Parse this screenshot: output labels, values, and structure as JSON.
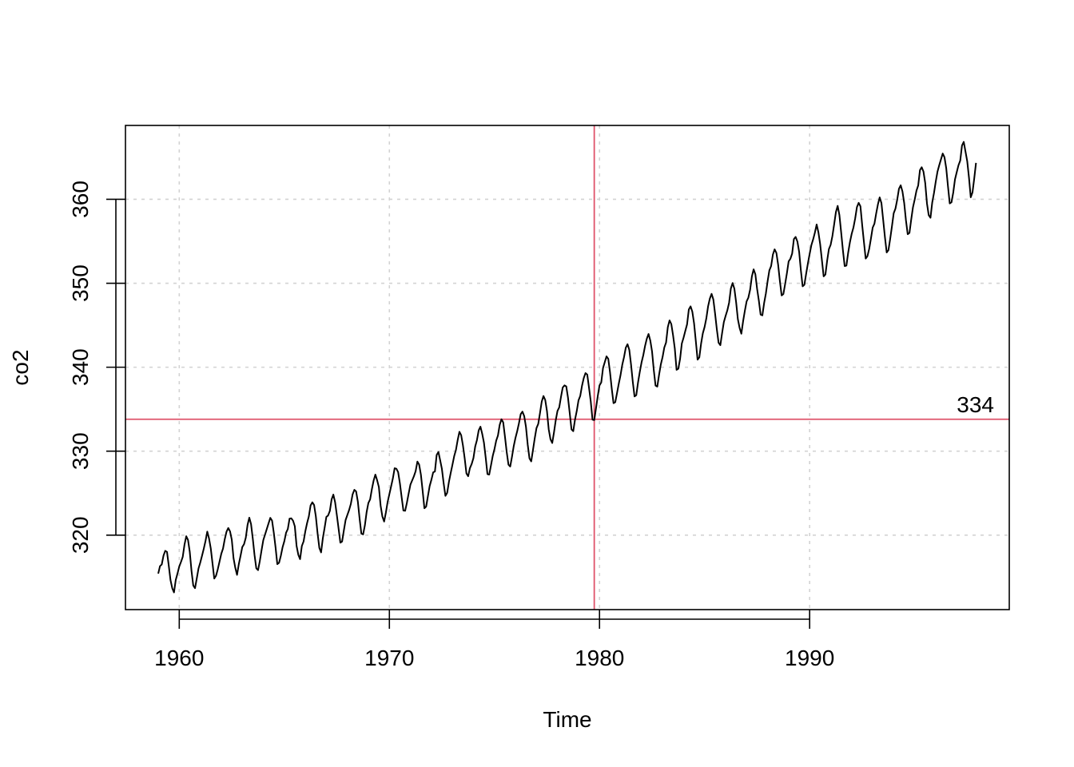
{
  "chart_data": {
    "type": "line",
    "title": "",
    "xlabel": "Time",
    "ylabel": "co2",
    "xlim": [
      1957.44,
      1999.5
    ],
    "ylim": [
      311.13,
      368.8
    ],
    "x_ticks": [
      1960,
      1970,
      1980,
      1990
    ],
    "y_ticks": [
      320,
      330,
      340,
      350,
      360
    ],
    "grid": true,
    "frequency": 12,
    "start": 1959.0,
    "series": [
      {
        "values": [
          315.42,
          316.31,
          316.5,
          317.56,
          318.13,
          318.0,
          316.39,
          314.65,
          313.68,
          313.18,
          314.66,
          315.43,
          316.27,
          316.81,
          317.42,
          318.87,
          319.87,
          319.43,
          318.01,
          315.74,
          314.0,
          313.68,
          314.84,
          316.03,
          316.73,
          317.54,
          318.38,
          319.31,
          320.42,
          319.61,
          318.42,
          316.63,
          314.83,
          315.16,
          315.94,
          316.85,
          317.78,
          318.4,
          319.53,
          320.42,
          320.85,
          320.45,
          319.45,
          317.25,
          316.11,
          315.27,
          316.53,
          317.53,
          318.58,
          318.92,
          319.7,
          321.22,
          322.08,
          321.31,
          319.58,
          317.61,
          316.05,
          315.83,
          316.91,
          318.2,
          319.41,
          320.07,
          320.74,
          321.4,
          322.06,
          321.73,
          320.27,
          318.54,
          316.54,
          316.71,
          317.53,
          318.55,
          319.27,
          320.28,
          320.73,
          321.97,
          322.0,
          321.71,
          321.05,
          318.71,
          317.66,
          317.14,
          318.7,
          319.25,
          320.46,
          321.43,
          322.23,
          323.54,
          323.91,
          323.59,
          322.24,
          320.2,
          318.48,
          317.94,
          319.63,
          320.87,
          322.17,
          322.34,
          322.88,
          324.25,
          324.83,
          323.93,
          322.38,
          320.76,
          319.1,
          319.24,
          320.56,
          321.8,
          322.4,
          322.99,
          323.73,
          324.86,
          325.4,
          325.2,
          323.98,
          321.95,
          320.18,
          320.09,
          321.16,
          322.74,
          323.83,
          324.26,
          325.47,
          326.5,
          327.21,
          326.54,
          325.72,
          323.5,
          322.22,
          321.62,
          322.69,
          323.95,
          324.89,
          325.82,
          326.77,
          327.97,
          327.91,
          327.5,
          326.18,
          324.53,
          322.93,
          322.9,
          323.85,
          324.96,
          326.01,
          326.51,
          327.01,
          327.62,
          328.76,
          328.4,
          327.2,
          325.27,
          323.2,
          323.4,
          324.63,
          325.85,
          326.6,
          327.47,
          327.58,
          329.56,
          329.9,
          328.92,
          327.88,
          326.16,
          324.68,
          325.04,
          326.34,
          327.39,
          328.37,
          329.4,
          330.14,
          331.33,
          332.31,
          331.9,
          330.7,
          329.15,
          327.35,
          327.02,
          327.99,
          328.48,
          329.18,
          330.55,
          331.32,
          332.48,
          332.92,
          332.08,
          331.01,
          329.23,
          327.27,
          327.21,
          328.29,
          329.41,
          330.23,
          331.25,
          331.87,
          333.14,
          333.8,
          333.43,
          331.73,
          329.9,
          328.4,
          328.17,
          329.32,
          330.59,
          331.58,
          332.39,
          333.33,
          334.41,
          334.71,
          334.17,
          332.89,
          330.77,
          329.14,
          328.78,
          330.14,
          331.52,
          332.75,
          333.24,
          334.53,
          335.9,
          336.57,
          336.1,
          334.76,
          332.59,
          331.42,
          330.98,
          332.24,
          333.68,
          334.8,
          335.22,
          336.47,
          337.59,
          337.84,
          337.72,
          336.37,
          334.51,
          332.6,
          332.38,
          333.75,
          334.78,
          336.05,
          336.59,
          337.79,
          338.71,
          339.3,
          339.12,
          337.56,
          335.92,
          333.75,
          333.7,
          335.12,
          336.56,
          337.84,
          338.19,
          339.91,
          340.6,
          341.29,
          341.0,
          339.39,
          337.43,
          335.72,
          335.84,
          336.93,
          338.04,
          339.06,
          340.3,
          341.21,
          342.33,
          342.74,
          342.08,
          340.32,
          338.26,
          336.52,
          336.68,
          338.19,
          339.44,
          340.57,
          341.44,
          342.53,
          343.39,
          343.96,
          343.18,
          341.88,
          339.65,
          337.81,
          337.69,
          339.09,
          340.32,
          341.2,
          342.35,
          342.93,
          344.77,
          345.58,
          345.14,
          343.81,
          342.21,
          339.69,
          339.82,
          340.98,
          342.82,
          343.52,
          344.33,
          345.11,
          346.88,
          347.25,
          346.62,
          345.22,
          343.11,
          340.9,
          341.18,
          342.8,
          344.04,
          344.79,
          345.82,
          347.25,
          348.17,
          348.74,
          348.07,
          346.38,
          344.51,
          342.92,
          342.62,
          344.06,
          345.38,
          346.11,
          346.78,
          347.68,
          349.37,
          350.03,
          349.37,
          347.76,
          345.73,
          344.68,
          343.99,
          345.48,
          346.72,
          347.84,
          348.29,
          349.23,
          350.8,
          351.66,
          351.07,
          349.33,
          347.92,
          346.27,
          346.18,
          347.64,
          348.78,
          350.25,
          351.54,
          352.05,
          353.41,
          354.04,
          353.62,
          352.22,
          350.27,
          348.55,
          348.72,
          349.91,
          351.18,
          352.6,
          352.92,
          353.53,
          355.26,
          355.52,
          354.97,
          353.75,
          351.52,
          349.64,
          349.83,
          351.14,
          352.37,
          353.5,
          354.55,
          355.23,
          356.04,
          357.0,
          356.07,
          354.67,
          352.76,
          350.82,
          351.04,
          352.69,
          354.07,
          354.59,
          355.63,
          357.03,
          358.48,
          359.22,
          358.12,
          356.06,
          353.92,
          352.05,
          352.11,
          353.64,
          354.89,
          355.88,
          356.63,
          357.72,
          359.07,
          359.58,
          359.17,
          356.94,
          354.92,
          352.94,
          353.23,
          354.09,
          355.33,
          356.63,
          357.1,
          358.32,
          359.41,
          360.23,
          359.55,
          357.53,
          355.48,
          353.67,
          353.95,
          355.3,
          356.78,
          358.34,
          358.89,
          359.95,
          361.25,
          361.67,
          360.94,
          359.55,
          357.49,
          355.84,
          356.0,
          357.59,
          359.05,
          359.98,
          361.03,
          361.66,
          363.48,
          363.82,
          363.3,
          361.94,
          359.5,
          358.11,
          357.8,
          359.61,
          360.74,
          362.09,
          363.29,
          364.06,
          364.76,
          365.45,
          365.01,
          363.7,
          361.54,
          359.51,
          359.65,
          360.8,
          362.38,
          363.23,
          364.06,
          364.61,
          366.4,
          366.84,
          365.68,
          364.52,
          362.57,
          360.24,
          360.83,
          362.49,
          364.34
        ]
      }
    ],
    "reference_lines": {
      "vertical_x": 1979.75,
      "horizontal_y": 333.8,
      "horizontal_label": "334",
      "color": "#DF536B"
    },
    "line_color": "#000000",
    "grid_color": "#D3D3D3"
  }
}
